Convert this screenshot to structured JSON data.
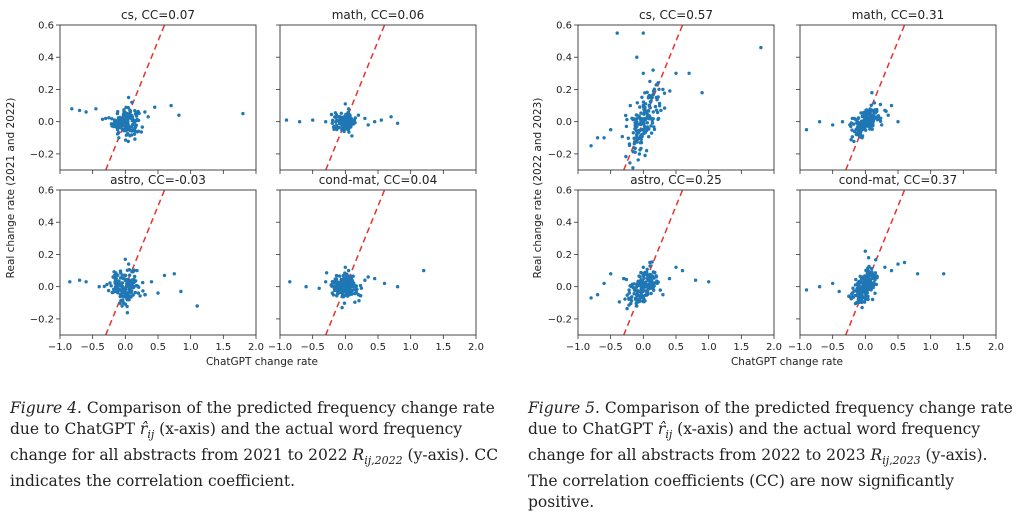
{
  "figures": [
    {
      "shared_ylabel": "Real change rate (2021 and 2022)",
      "xlabel": "ChatGPT change rate",
      "caption": {
        "label": "Figure 4.",
        "text_a": " Comparison of the predicted frequency change rate due to ChatGPT ",
        "var_r": "r̂",
        "sub_r": "ij",
        "text_b": " (x-axis) and the actual word frequency change for all abstracts from 2021 to 2022 ",
        "var_R": "R",
        "sub_R": "ij,2022",
        "text_c": " (y-axis). CC indicates the correlation coefficient."
      }
    },
    {
      "shared_ylabel": "Real change rate (2022 and 2023)",
      "xlabel": "ChatGPT change rate",
      "caption": {
        "label": "Figure 5.",
        "text_a": " Comparison of the predicted frequency change rate due to ChatGPT ",
        "var_r": "r̂",
        "sub_r": "ij",
        "text_b": " (x-axis) and the actual word frequency change for all abstracts from 2022 to 2023 ",
        "var_R": "R",
        "sub_R": "ij,2023",
        "text_c": " (y-axis). The correlation coefficients (CC) are now significantly positive."
      }
    }
  ],
  "chart_data": [
    {
      "figure": 4,
      "type": "scatter",
      "title": "cs, CC=0.07",
      "xlim": [
        -1.0,
        2.0
      ],
      "ylim": [
        -0.3,
        0.6
      ],
      "xticks": [
        "−1.0",
        "−0.5",
        "0.0",
        "0.5",
        "1.0",
        "1.5",
        "2.0"
      ],
      "yticks": [
        "−0.2",
        "0.0",
        "0.2",
        "0.4",
        "0.6"
      ],
      "reference_line": "y = x",
      "cluster": {
        "center": [
          0.0,
          0.0
        ],
        "spread": [
          0.1,
          0.04
        ]
      },
      "points": [
        [
          -0.82,
          0.08
        ],
        [
          -0.7,
          0.07
        ],
        [
          -0.6,
          0.06
        ],
        [
          -0.45,
          0.08
        ],
        [
          0.3,
          0.06
        ],
        [
          0.45,
          0.09
        ],
        [
          0.7,
          0.1
        ],
        [
          0.82,
          0.04
        ],
        [
          1.8,
          0.05
        ],
        [
          0.05,
          0.15
        ],
        [
          0.1,
          0.12
        ],
        [
          -0.1,
          -0.1
        ],
        [
          0.2,
          -0.06
        ],
        [
          0.35,
          0.03
        ],
        [
          -0.3,
          0.02
        ]
      ]
    },
    {
      "figure": 4,
      "type": "scatter",
      "title": "math, CC=0.06",
      "xlim": [
        -1.0,
        2.0
      ],
      "ylim": [
        -0.3,
        0.6
      ],
      "xticks": [
        "−1.0",
        "−0.5",
        "0.0",
        "0.5",
        "1.0",
        "1.5",
        "2.0"
      ],
      "yticks": [
        "−0.2",
        "0.0",
        "0.2",
        "0.4",
        "0.6"
      ],
      "reference_line": "y = x",
      "cluster": {
        "center": [
          0.0,
          0.0
        ],
        "spread": [
          0.08,
          0.025
        ]
      },
      "points": [
        [
          -0.9,
          0.01
        ],
        [
          -0.7,
          0.0
        ],
        [
          -0.5,
          0.01
        ],
        [
          -0.3,
          0.0
        ],
        [
          0.3,
          0.02
        ],
        [
          0.45,
          0.0
        ],
        [
          0.55,
          0.01
        ],
        [
          0.7,
          0.03
        ],
        [
          0.8,
          -0.01
        ],
        [
          0.0,
          0.11
        ],
        [
          0.05,
          0.08
        ],
        [
          -0.05,
          -0.05
        ],
        [
          0.2,
          0.04
        ],
        [
          -0.2,
          -0.01
        ],
        [
          0.35,
          -0.02
        ]
      ]
    },
    {
      "figure": 4,
      "type": "scatter",
      "title": "astro, CC=-0.03",
      "xlim": [
        -1.0,
        2.0
      ],
      "ylim": [
        -0.3,
        0.6
      ],
      "xticks": [
        "−1.0",
        "−0.5",
        "0.0",
        "0.5",
        "1.0",
        "1.5",
        "2.0"
      ],
      "yticks": [
        "−0.2",
        "0.0",
        "0.2",
        "0.4",
        "0.6"
      ],
      "reference_line": "y = x",
      "cluster": {
        "center": [
          0.0,
          0.0
        ],
        "spread": [
          0.12,
          0.05
        ]
      },
      "points": [
        [
          -0.85,
          0.03
        ],
        [
          -0.7,
          0.04
        ],
        [
          -0.6,
          0.03
        ],
        [
          -0.4,
          0.0
        ],
        [
          0.4,
          0.03
        ],
        [
          0.6,
          0.07
        ],
        [
          0.75,
          0.08
        ],
        [
          0.85,
          -0.03
        ],
        [
          1.1,
          -0.12
        ],
        [
          0.0,
          0.17
        ],
        [
          0.05,
          0.14
        ],
        [
          -0.05,
          -0.12
        ],
        [
          0.3,
          -0.05
        ],
        [
          0.2,
          -0.04
        ],
        [
          0.5,
          -0.04
        ]
      ]
    },
    {
      "figure": 4,
      "type": "scatter",
      "title": "cond-mat, CC=0.04",
      "xlim": [
        -1.0,
        2.0
      ],
      "ylim": [
        -0.3,
        0.6
      ],
      "xticks": [
        "−1.0",
        "−0.5",
        "0.0",
        "0.5",
        "1.0",
        "1.5",
        "2.0"
      ],
      "yticks": [
        "−0.2",
        "0.0",
        "0.2",
        "0.4",
        "0.6"
      ],
      "reference_line": "y = x",
      "cluster": {
        "center": [
          0.0,
          0.0
        ],
        "spread": [
          0.1,
          0.04
        ]
      },
      "points": [
        [
          -0.85,
          0.03
        ],
        [
          -0.6,
          0.0
        ],
        [
          -0.4,
          -0.01
        ],
        [
          -0.3,
          0.03
        ],
        [
          0.3,
          0.04
        ],
        [
          0.45,
          0.05
        ],
        [
          0.6,
          0.02
        ],
        [
          0.8,
          0.0
        ],
        [
          1.2,
          0.1
        ],
        [
          0.0,
          0.12
        ],
        [
          0.05,
          0.1
        ],
        [
          -0.05,
          -0.13
        ],
        [
          0.2,
          -0.05
        ],
        [
          0.35,
          0.06
        ],
        [
          -0.2,
          -0.04
        ]
      ]
    },
    {
      "figure": 5,
      "type": "scatter",
      "title": "cs, CC=0.57",
      "xlim": [
        -1.0,
        2.0
      ],
      "ylim": [
        -0.3,
        0.6
      ],
      "xticks": [
        "−1.0",
        "−0.5",
        "0.0",
        "0.5",
        "1.0",
        "1.5",
        "2.0"
      ],
      "yticks": [
        "−0.2",
        "0.0",
        "0.2",
        "0.4",
        "0.6"
      ],
      "reference_line": "y = x",
      "cluster": {
        "center": [
          0.0,
          0.0
        ],
        "spread": [
          0.12,
          0.08
        ]
      },
      "points": [
        [
          -0.4,
          0.55
        ],
        [
          0.0,
          0.55
        ],
        [
          -0.1,
          0.4
        ],
        [
          0.0,
          0.3
        ],
        [
          0.1,
          0.25
        ],
        [
          0.3,
          0.2
        ],
        [
          0.5,
          0.3
        ],
        [
          0.7,
          0.3
        ],
        [
          0.9,
          0.18
        ],
        [
          1.8,
          0.46
        ],
        [
          -0.5,
          -0.05
        ],
        [
          -0.6,
          -0.1
        ],
        [
          -0.7,
          -0.1
        ],
        [
          -0.8,
          -0.15
        ],
        [
          0.2,
          0.15
        ],
        [
          -0.2,
          0.1
        ],
        [
          0.05,
          -0.18
        ],
        [
          0.15,
          0.32
        ]
      ]
    },
    {
      "figure": 5,
      "type": "scatter",
      "title": "math, CC=0.31",
      "xlim": [
        -1.0,
        2.0
      ],
      "ylim": [
        -0.3,
        0.6
      ],
      "xticks": [
        "−1.0",
        "−0.5",
        "0.0",
        "0.5",
        "1.0",
        "1.5",
        "2.0"
      ],
      "yticks": [
        "−0.2",
        "0.0",
        "0.2",
        "0.4",
        "0.6"
      ],
      "reference_line": "y = x",
      "cluster": {
        "center": [
          0.0,
          0.0
        ],
        "spread": [
          0.1,
          0.04
        ]
      },
      "points": [
        [
          -0.9,
          -0.05
        ],
        [
          -0.7,
          0.0
        ],
        [
          -0.5,
          -0.02
        ],
        [
          -0.35,
          0.0
        ],
        [
          0.3,
          0.07
        ],
        [
          0.4,
          0.1
        ],
        [
          0.5,
          0.0
        ],
        [
          0.1,
          0.18
        ],
        [
          -0.05,
          -0.1
        ],
        [
          0.25,
          -0.02
        ],
        [
          -0.2,
          0.02
        ],
        [
          0.35,
          0.04
        ]
      ]
    },
    {
      "figure": 5,
      "type": "scatter",
      "title": "astro, CC=0.25",
      "xlim": [
        -1.0,
        2.0
      ],
      "ylim": [
        -0.3,
        0.6
      ],
      "xticks": [
        "−1.0",
        "−0.5",
        "0.0",
        "0.5",
        "1.0",
        "1.5",
        "2.0"
      ],
      "yticks": [
        "−0.2",
        "0.0",
        "0.2",
        "0.4",
        "0.6"
      ],
      "reference_line": "y = x",
      "cluster": {
        "center": [
          0.0,
          0.0
        ],
        "spread": [
          0.13,
          0.05
        ]
      },
      "points": [
        [
          -0.8,
          -0.07
        ],
        [
          -0.7,
          -0.05
        ],
        [
          -0.6,
          0.02
        ],
        [
          -0.5,
          0.08
        ],
        [
          0.4,
          0.05
        ],
        [
          0.6,
          0.1
        ],
        [
          0.8,
          0.04
        ],
        [
          1.0,
          0.03
        ],
        [
          0.1,
          0.15
        ],
        [
          0.0,
          0.12
        ],
        [
          -0.1,
          -0.12
        ],
        [
          0.3,
          -0.05
        ],
        [
          -0.3,
          0.05
        ],
        [
          0.5,
          0.12
        ]
      ]
    },
    {
      "figure": 5,
      "type": "scatter",
      "title": "cond-mat, CC=0.37",
      "xlim": [
        -1.0,
        2.0
      ],
      "ylim": [
        -0.3,
        0.6
      ],
      "xticks": [
        "−1.0",
        "−0.5",
        "0.0",
        "0.5",
        "1.0",
        "1.5",
        "2.0"
      ],
      "yticks": [
        "−0.2",
        "0.0",
        "0.2",
        "0.4",
        "0.6"
      ],
      "reference_line": "y = x",
      "cluster": {
        "center": [
          0.0,
          0.0
        ],
        "spread": [
          0.1,
          0.05
        ]
      },
      "points": [
        [
          -0.9,
          -0.02
        ],
        [
          -0.7,
          0.0
        ],
        [
          -0.5,
          0.02
        ],
        [
          -0.4,
          -0.03
        ],
        [
          0.4,
          0.1
        ],
        [
          0.6,
          0.15
        ],
        [
          0.8,
          0.08
        ],
        [
          1.2,
          0.08
        ],
        [
          0.0,
          0.22
        ],
        [
          0.05,
          0.18
        ],
        [
          -0.05,
          -0.13
        ],
        [
          0.3,
          0.12
        ],
        [
          -0.2,
          -0.04
        ],
        [
          0.5,
          0.14
        ]
      ]
    }
  ]
}
